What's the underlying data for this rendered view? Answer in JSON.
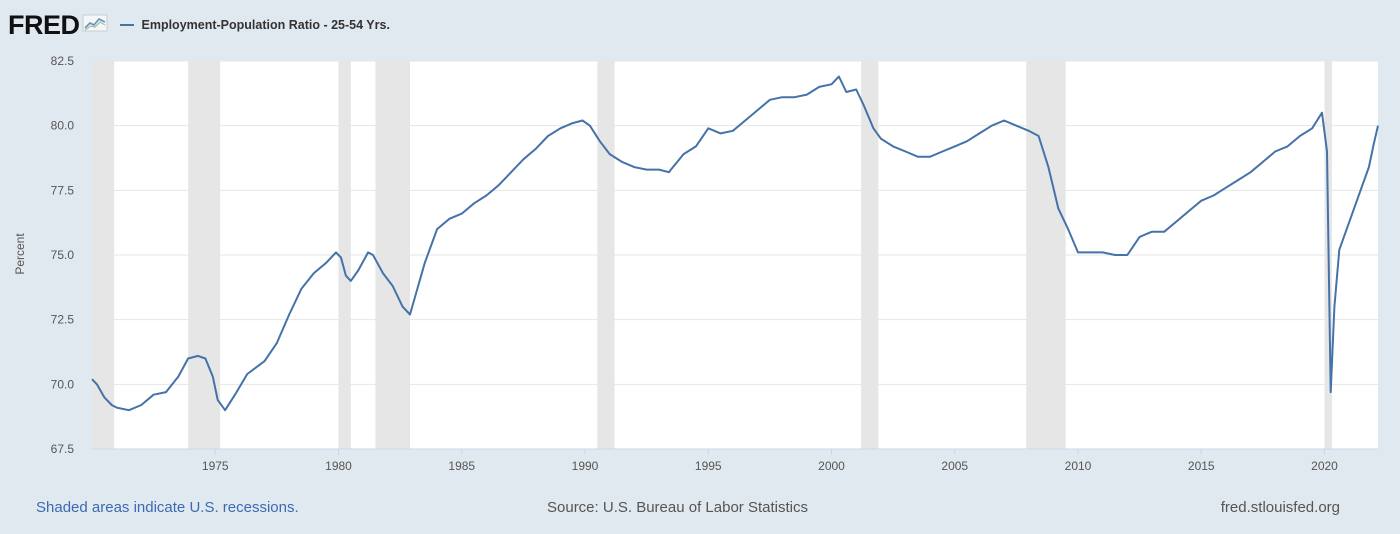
{
  "header": {
    "logo_text": "FRED",
    "logo_icon": "fred-chart-icon",
    "legend": [
      {
        "name": "Employment-Population Ratio - 25-54 Yrs.",
        "color": "#4572a7"
      }
    ]
  },
  "footer": {
    "recession_note": "Shaded areas indicate U.S. recessions.",
    "source": "Source: U.S. Bureau of Labor Statistics",
    "site": "fred.stlouisfed.org"
  },
  "chart_data": {
    "type": "line",
    "title": "",
    "xlabel": "",
    "ylabel": "Percent",
    "xlim": [
      1970.0,
      2022.17
    ],
    "ylim": [
      67.5,
      82.5
    ],
    "yticks": [
      "67.5",
      "70.0",
      "72.5",
      "75.0",
      "77.5",
      "80.0",
      "82.5"
    ],
    "xticks": [
      "1975",
      "1980",
      "1985",
      "1990",
      "1995",
      "2000",
      "2005",
      "2010",
      "2015",
      "2020"
    ],
    "grid": true,
    "line_color": "#4572a7",
    "recession_color": "#e6e6e6",
    "recessions": [
      [
        1970.0,
        1970.9
      ],
      [
        1973.9,
        1975.2
      ],
      [
        1980.0,
        1980.5
      ],
      [
        1981.5,
        1982.9
      ],
      [
        1990.5,
        1991.2
      ],
      [
        2001.2,
        2001.9
      ],
      [
        2007.9,
        2009.5
      ],
      [
        2020.0,
        2020.3
      ]
    ],
    "series": [
      {
        "name": "Employment-Population Ratio - 25-54 Yrs.",
        "x": [
          1970.0,
          1970.2,
          1970.5,
          1970.8,
          1971.0,
          1971.5,
          1972.0,
          1972.5,
          1973.0,
          1973.5,
          1973.9,
          1974.3,
          1974.6,
          1974.9,
          1975.1,
          1975.4,
          1975.8,
          1976.3,
          1977.0,
          1977.5,
          1978.0,
          1978.5,
          1979.0,
          1979.5,
          1979.9,
          1980.1,
          1980.3,
          1980.5,
          1980.8,
          1981.2,
          1981.4,
          1981.8,
          1982.2,
          1982.6,
          1982.9,
          1983.2,
          1983.5,
          1984.0,
          1984.5,
          1985.0,
          1985.5,
          1986.0,
          1986.5,
          1987.0,
          1987.5,
          1988.0,
          1988.5,
          1989.0,
          1989.5,
          1989.9,
          1990.2,
          1990.6,
          1991.0,
          1991.5,
          1992.0,
          1992.5,
          1993.0,
          1993.4,
          1994.0,
          1994.5,
          1995.0,
          1995.5,
          1996.0,
          1996.5,
          1997.0,
          1997.5,
          1998.0,
          1998.5,
          1999.0,
          1999.5,
          2000.0,
          2000.3,
          2000.6,
          2001.0,
          2001.3,
          2001.7,
          2002.0,
          2002.5,
          2003.0,
          2003.5,
          2004.0,
          2004.5,
          2005.0,
          2005.5,
          2006.0,
          2006.5,
          2007.0,
          2007.5,
          2008.0,
          2008.4,
          2008.8,
          2009.2,
          2009.6,
          2010.0,
          2010.5,
          2011.0,
          2011.5,
          2012.0,
          2012.5,
          2013.0,
          2013.5,
          2014.0,
          2014.5,
          2015.0,
          2015.5,
          2016.0,
          2016.5,
          2017.0,
          2017.5,
          2018.0,
          2018.5,
          2019.0,
          2019.5,
          2019.9,
          2020.1,
          2020.25,
          2020.4,
          2020.6,
          2020.9,
          2021.2,
          2021.5,
          2021.8,
          2022.0,
          2022.17
        ],
        "values": [
          70.2,
          70.0,
          69.5,
          69.2,
          69.1,
          69.0,
          69.2,
          69.6,
          69.7,
          70.3,
          71.0,
          71.1,
          71.0,
          70.3,
          69.4,
          69.0,
          69.6,
          70.4,
          70.9,
          71.6,
          72.7,
          73.7,
          74.3,
          74.7,
          75.1,
          74.9,
          74.2,
          74.0,
          74.4,
          75.1,
          75.0,
          74.3,
          73.8,
          73.0,
          72.7,
          73.7,
          74.7,
          76.0,
          76.4,
          76.6,
          77.0,
          77.3,
          77.7,
          78.2,
          78.7,
          79.1,
          79.6,
          79.9,
          80.1,
          80.2,
          80.0,
          79.4,
          78.9,
          78.6,
          78.4,
          78.3,
          78.3,
          78.2,
          78.9,
          79.2,
          79.9,
          79.7,
          79.8,
          80.2,
          80.6,
          81.0,
          81.1,
          81.1,
          81.2,
          81.5,
          81.6,
          81.9,
          81.3,
          81.4,
          80.8,
          79.9,
          79.5,
          79.2,
          79.0,
          78.8,
          78.8,
          79.0,
          79.2,
          79.4,
          79.7,
          80.0,
          80.2,
          80.0,
          79.8,
          79.6,
          78.4,
          76.8,
          76.0,
          75.1,
          75.1,
          75.1,
          75.0,
          75.0,
          75.7,
          75.9,
          75.9,
          76.3,
          76.7,
          77.1,
          77.3,
          77.6,
          77.9,
          78.2,
          78.6,
          79.0,
          79.2,
          79.6,
          79.9,
          80.5,
          79.0,
          69.7,
          73.0,
          75.2,
          76.0,
          76.8,
          77.6,
          78.4,
          79.3,
          80.0
        ]
      }
    ]
  }
}
